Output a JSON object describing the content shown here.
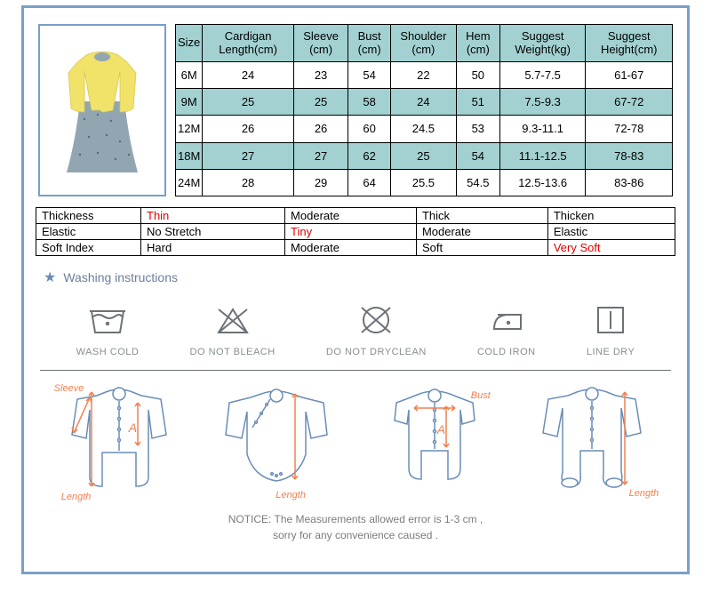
{
  "size_table": {
    "headers": [
      "Size",
      "Cardigan Length(cm)",
      "Sleeve (cm)",
      "Bust (cm)",
      "Shoulder (cm)",
      "Hem (cm)",
      "Suggest Weight(kg)",
      "Suggest Height(cm)"
    ],
    "rows": [
      [
        "6M",
        "24",
        "23",
        "54",
        "22",
        "50",
        "5.7-7.5",
        "61-67"
      ],
      [
        "9M",
        "25",
        "25",
        "58",
        "24",
        "51",
        "7.5-9.3",
        "67-72"
      ],
      [
        "12M",
        "26",
        "26",
        "60",
        "24.5",
        "53",
        "9.3-11.1",
        "72-78"
      ],
      [
        "18M",
        "27",
        "27",
        "62",
        "25",
        "54",
        "11.1-12.5",
        "78-83"
      ],
      [
        "24M",
        "28",
        "29",
        "64",
        "25.5",
        "54.5",
        "12.5-13.6",
        "83-86"
      ]
    ],
    "header_bg": "#a3d1d1",
    "alt_row_bg": "#a3d1d1",
    "border_color": "#000000",
    "font_size": 13
  },
  "attr_table": {
    "rows": [
      {
        "label": "Thickness",
        "cells": [
          {
            "text": "Thin",
            "highlight": true
          },
          {
            "text": "Moderate"
          },
          {
            "text": "Thick"
          },
          {
            "text": "Thicken"
          }
        ]
      },
      {
        "label": "Elastic",
        "cells": [
          {
            "text": "No Stretch"
          },
          {
            "text": "Tiny",
            "highlight": true
          },
          {
            "text": "Moderate"
          },
          {
            "text": "Elastic"
          }
        ]
      },
      {
        "label": "Soft Index",
        "cells": [
          {
            "text": "Hard"
          },
          {
            "text": "Moderate"
          },
          {
            "text": "Soft"
          },
          {
            "text": "Very Soft",
            "highlight": true
          }
        ]
      }
    ],
    "highlight_color": "#e00000",
    "border_color": "#000000"
  },
  "washing": {
    "title": "Washing instructions",
    "items": [
      {
        "name": "wash-cold",
        "label": "WASH COLD"
      },
      {
        "name": "no-bleach",
        "label": "DO NOT BLEACH"
      },
      {
        "name": "no-dryclean",
        "label": "DO NOT DRYCLEAN"
      },
      {
        "name": "cold-iron",
        "label": "COLD IRON"
      },
      {
        "name": "line-dry",
        "label": "LINE DRY"
      }
    ],
    "icon_color": "#6b7277",
    "label_color": "#898d91"
  },
  "diagrams": {
    "items": [
      {
        "labels": {
          "sleeve": "Sleeve",
          "a": "A",
          "length": "Length"
        }
      },
      {
        "labels": {
          "length": "Length"
        }
      },
      {
        "labels": {
          "bust": "Bust",
          "a": "A"
        }
      },
      {
        "labels": {
          "length": "Length"
        }
      }
    ],
    "outline_color": "#6a8db5",
    "arrow_color": "#f08050",
    "label_color": "#f08050"
  },
  "notice": {
    "line1": "NOTICE:   The Measurements allowed error is 1-3 cm ,",
    "line2": "sorry for any convenience caused ."
  },
  "colors": {
    "frame_border": "#7a9fc8",
    "product_cardigan": "#f1e26a",
    "product_dress": "#92a6b2"
  }
}
